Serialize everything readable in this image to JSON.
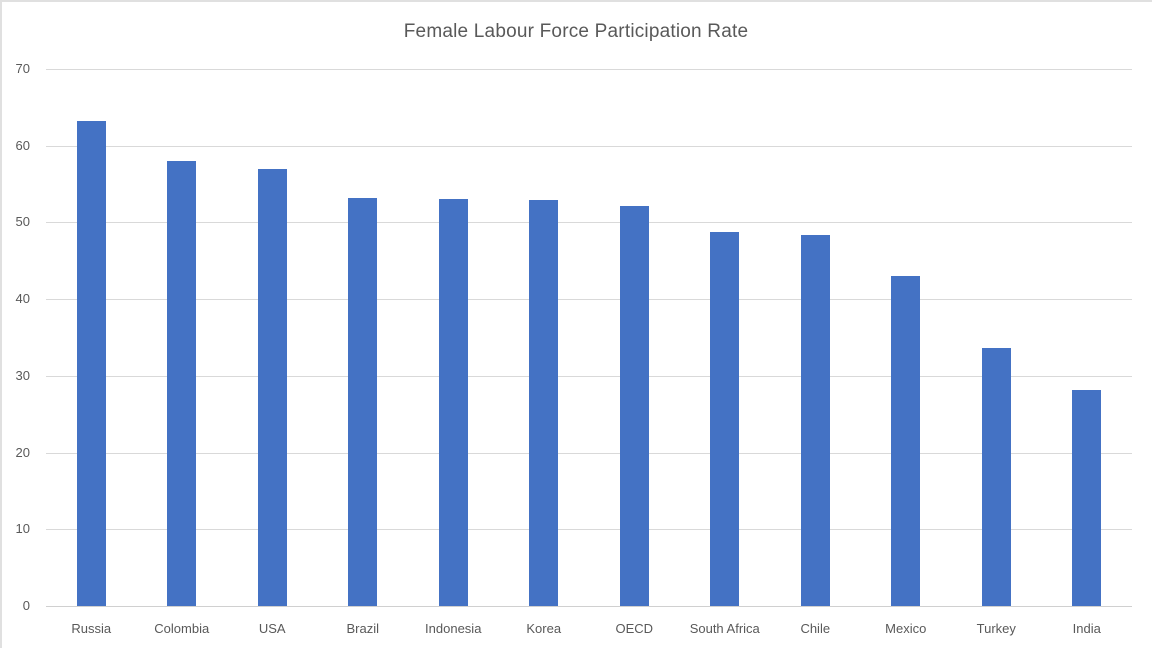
{
  "chart_data": {
    "type": "bar",
    "title": "Female Labour Force Participation Rate",
    "categories": [
      "Russia",
      "Colombia",
      "USA",
      "Brazil",
      "Indonesia",
      "Korea",
      "OECD",
      "South Africa",
      "Chile",
      "Mexico",
      "Turkey",
      "India"
    ],
    "values": [
      63.2,
      58.0,
      57.0,
      53.2,
      53.0,
      52.9,
      52.1,
      48.7,
      48.4,
      43.0,
      33.6,
      28.1
    ],
    "xlabel": "",
    "ylabel": "",
    "ylim": [
      0,
      70
    ],
    "yticks": [
      0,
      10,
      20,
      30,
      40,
      50,
      60,
      70
    ],
    "grid": true,
    "legend": false
  },
  "colors": {
    "bar": "#4472C4",
    "gridline": "#D9D9D9",
    "axis_line": "#D0D0D0",
    "text": "#595959",
    "background": "#FFFFFF",
    "frame_border": "#E0E0E0"
  }
}
